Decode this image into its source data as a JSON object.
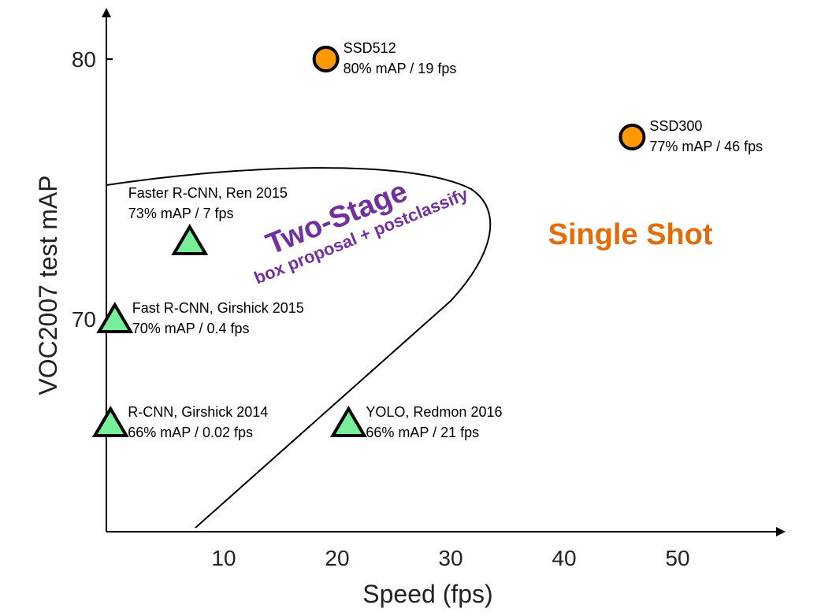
{
  "chart_data": {
    "type": "scatter",
    "xlabel": "Speed (fps)",
    "ylabel": "VOC2007 test mAP",
    "xlim": [
      0,
      57
    ],
    "ylim": [
      62,
      82
    ],
    "xticks": [
      10,
      20,
      30,
      40,
      50
    ],
    "yticks": [
      70,
      80
    ],
    "grid": false,
    "points": [
      {
        "name": "SSD512",
        "detail": "80% mAP / 19 fps",
        "x": 19,
        "y": 80,
        "marker": "circle",
        "color": "#FF9900"
      },
      {
        "name": "SSD300",
        "detail": "77% mAP / 46 fps",
        "x": 46,
        "y": 77,
        "marker": "circle",
        "color": "#FF9900"
      },
      {
        "name": "Faster R-CNN, Ren 2015",
        "detail": "73% mAP / 7 fps",
        "x": 7,
        "y": 73,
        "marker": "triangle",
        "color": "#77EE99"
      },
      {
        "name": "Fast R-CNN, Girshick 2015",
        "detail": "70% mAP / 0.4 fps",
        "x": 0.4,
        "y": 70,
        "marker": "triangle",
        "color": "#77EE99"
      },
      {
        "name": "R-CNN, Girshick 2014",
        "detail": "66% mAP / 0.02 fps",
        "x": 0.02,
        "y": 66,
        "marker": "triangle",
        "color": "#77EE99"
      },
      {
        "name": "YOLO, Redmon 2016",
        "detail": "66% mAP / 21 fps",
        "x": 21,
        "y": 66,
        "marker": "triangle",
        "color": "#77EE99"
      }
    ],
    "annotations": {
      "two_stage": "Two-Stage",
      "two_stage_sub": "box proposal + postclassify",
      "two_stage_color": "#7030A0",
      "single_shot": "Single Shot",
      "single_shot_color": "#E36C0A"
    }
  }
}
